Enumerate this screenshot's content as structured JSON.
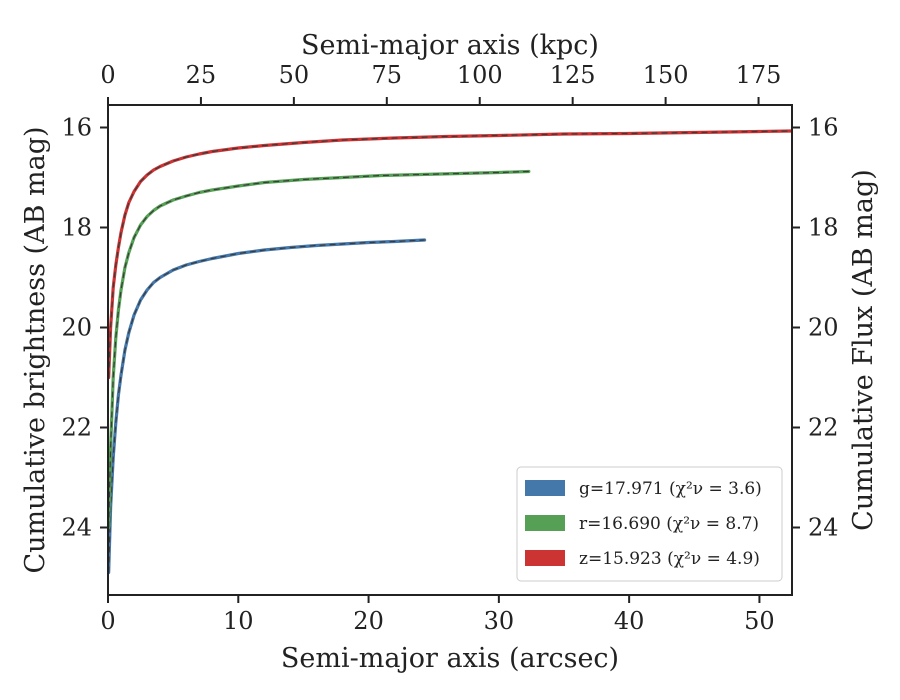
{
  "chart_data": {
    "type": "line",
    "xlabel": "Semi-major axis (arcsec)",
    "x2label": "Semi-major axis (kpc)",
    "ylabel": "Cumulative brightness (AB mag)",
    "y2label": "Cumulative Flux (AB mag)",
    "xlim": [
      0,
      52.5
    ],
    "x2lim": [
      0,
      184
    ],
    "ylim": [
      25.35,
      15.55
    ],
    "y_inverted": true,
    "xticks": [
      0,
      10,
      20,
      30,
      40,
      50
    ],
    "x2ticks": [
      0,
      25,
      50,
      75,
      100,
      125,
      150,
      175
    ],
    "yticks": [
      16,
      18,
      20,
      22,
      24
    ],
    "legend_position": "lower-right",
    "series": [
      {
        "name": "g",
        "legend_label": "g=17.971 (χ²ν = 3.6)",
        "color": "#4477aa",
        "x": [
          0.05,
          0.2,
          0.4,
          0.6,
          0.8,
          1.0,
          1.3,
          1.6,
          2.0,
          2.5,
          3.0,
          3.5,
          4.0,
          5.0,
          6.0,
          7.0,
          8.0,
          10.0,
          12.0,
          14.0,
          16.0,
          18.0,
          20.0,
          22.0,
          24.3
        ],
        "y": [
          24.9,
          23.6,
          22.6,
          21.9,
          21.35,
          20.95,
          20.45,
          20.1,
          19.75,
          19.45,
          19.25,
          19.1,
          19.0,
          18.85,
          18.75,
          18.68,
          18.62,
          18.52,
          18.45,
          18.4,
          18.36,
          18.33,
          18.3,
          18.28,
          18.25
        ]
      },
      {
        "name": "r",
        "legend_label": "r=16.690 (χ²ν = 8.7)",
        "color": "#55a055",
        "x": [
          0.05,
          0.2,
          0.4,
          0.6,
          0.8,
          1.0,
          1.3,
          1.6,
          2.0,
          2.5,
          3.0,
          3.5,
          4.0,
          5.0,
          6.0,
          7.0,
          8.0,
          10.0,
          12.0,
          15.0,
          18.0,
          21.0,
          24.0,
          27.0,
          30.0,
          32.3
        ],
        "y": [
          24.0,
          22.4,
          21.0,
          20.2,
          19.65,
          19.25,
          18.8,
          18.5,
          18.2,
          17.95,
          17.78,
          17.66,
          17.57,
          17.45,
          17.37,
          17.3,
          17.25,
          17.17,
          17.1,
          17.04,
          17.0,
          16.96,
          16.94,
          16.92,
          16.9,
          16.88
        ]
      },
      {
        "name": "z",
        "legend_label": "z=15.923 (χ²ν = 4.9)",
        "color": "#cc3333",
        "x": [
          0.05,
          0.2,
          0.4,
          0.6,
          0.8,
          1.0,
          1.3,
          1.6,
          2.0,
          2.5,
          3.0,
          3.5,
          4.0,
          5.0,
          6.0,
          7.0,
          8.0,
          10.0,
          12.0,
          15.0,
          18.0,
          22.0,
          26.0,
          30.0,
          35.0,
          40.0,
          45.0,
          50.0,
          52.4
        ],
        "y": [
          21.0,
          20.0,
          19.2,
          18.75,
          18.4,
          18.1,
          17.75,
          17.5,
          17.28,
          17.08,
          16.95,
          16.85,
          16.78,
          16.67,
          16.59,
          16.53,
          16.48,
          16.41,
          16.36,
          16.3,
          16.25,
          16.21,
          16.18,
          16.16,
          16.13,
          16.12,
          16.1,
          16.08,
          16.07
        ]
      }
    ]
  }
}
